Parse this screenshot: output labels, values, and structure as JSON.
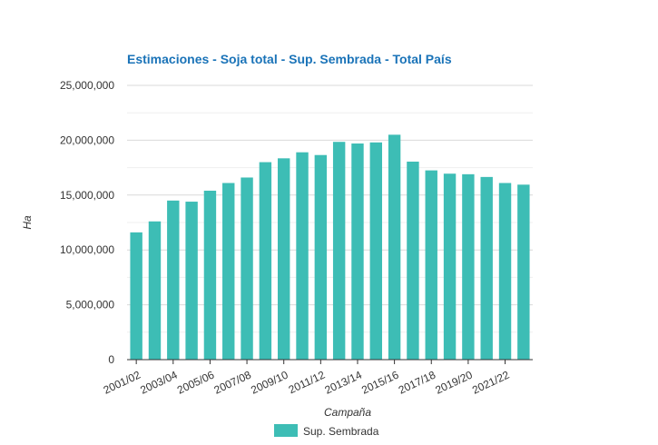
{
  "colors": {
    "bar": "#3dbdb5",
    "title": "#1a73b8",
    "grid": "#d9d9d9",
    "axis": "#333333"
  },
  "chart_data": {
    "type": "bar",
    "title": "Estimaciones - Soja total - Sup. Sembrada - Total País",
    "xlabel": "Campaña",
    "ylabel": "Ha",
    "ylim": [
      0,
      25000000
    ],
    "yticks": [
      "0",
      "5,000,000",
      "10,000,000",
      "15,000,000",
      "20,000,000",
      "25,000,000"
    ],
    "grid": true,
    "legend_position": "bottom",
    "categories": [
      "2001/02",
      "2002/03",
      "2003/04",
      "2004/05",
      "2005/06",
      "2006/07",
      "2007/08",
      "2008/09",
      "2009/10",
      "2010/11",
      "2011/12",
      "2012/13",
      "2013/14",
      "2014/15",
      "2015/16",
      "2016/17",
      "2017/18",
      "2018/19",
      "2019/20",
      "2020/21",
      "2021/22",
      "2022/23"
    ],
    "shown_tick_labels": [
      "2001/02",
      "2003/04",
      "2005/06",
      "2007/08",
      "2009/10",
      "2011/12",
      "2013/14",
      "2015/16",
      "2017/18",
      "2019/20",
      "2021/22"
    ],
    "series": [
      {
        "name": "Sup. Sembrada",
        "values": [
          11600000,
          12600000,
          14500000,
          14400000,
          15400000,
          16100000,
          16600000,
          18000000,
          18350000,
          18900000,
          18650000,
          19850000,
          19700000,
          19800000,
          20500000,
          18050000,
          17250000,
          16950000,
          16900000,
          16650000,
          16100000,
          15950000
        ]
      }
    ]
  }
}
